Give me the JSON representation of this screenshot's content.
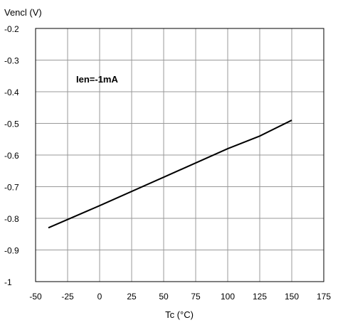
{
  "chart_data": {
    "type": "line",
    "xlabel": "Tc (°C)",
    "ylabel": "Vencl (V)",
    "xlim": [
      -50,
      175
    ],
    "ylim": [
      -1,
      -0.2
    ],
    "x_ticks": [
      -50,
      -25,
      0,
      25,
      50,
      75,
      100,
      125,
      150,
      175
    ],
    "y_ticks": [
      -1,
      -0.9,
      -0.8,
      -0.7,
      -0.6,
      -0.5,
      -0.4,
      -0.3,
      -0.2
    ],
    "x_tick_labels": [
      "-50",
      "-25",
      "0",
      "25",
      "50",
      "75",
      "100",
      "125",
      "150",
      "175"
    ],
    "y_tick_labels": [
      "-1",
      "-0.9",
      "-0.8",
      "-0.7",
      "-0.6",
      "-0.5",
      "-0.4",
      "-0.3",
      "-0.2"
    ],
    "grid": true,
    "annotation": "Ien=-1mA",
    "series": [
      {
        "x": [
          -40,
          0,
          50,
          100,
          125,
          150
        ],
        "y": [
          -0.83,
          -0.76,
          -0.67,
          -0.58,
          -0.54,
          -0.49
        ],
        "color": "#000000"
      }
    ]
  }
}
